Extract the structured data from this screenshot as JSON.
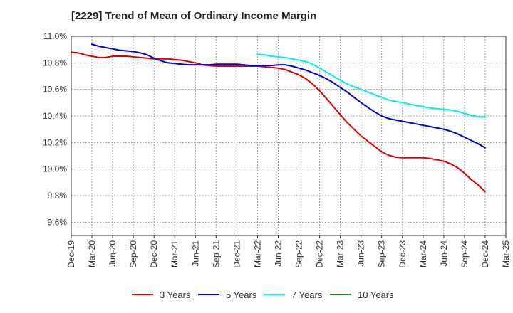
{
  "chart_data": {
    "type": "line",
    "title": "[2229]  Trend of Mean of Ordinary Income Margin",
    "xlabel": "",
    "ylabel": "",
    "x_ticks": [
      "Dec-19",
      "Mar-20",
      "Jun-20",
      "Sep-20",
      "Dec-20",
      "Mar-21",
      "Jun-21",
      "Sep-21",
      "Dec-21",
      "Mar-22",
      "Jun-22",
      "Sep-22",
      "Dec-22",
      "Mar-23",
      "Jun-23",
      "Sep-23",
      "Dec-23",
      "Mar-24",
      "Jun-24",
      "Sep-24",
      "Dec-24",
      "Mar-25"
    ],
    "y_ticks": [
      "9.6%",
      "9.8%",
      "10.0%",
      "10.2%",
      "10.4%",
      "10.6%",
      "10.8%",
      "11.0%"
    ],
    "ylim": [
      9.5,
      11.0
    ],
    "grid": true,
    "legend_position": "bottom",
    "series": [
      {
        "name": "3 Years",
        "color": "#dd0000",
        "x": [
          "Dec-19",
          "Jan-20",
          "Feb-20",
          "Mar-20",
          "Apr-20",
          "May-20",
          "Jun-20",
          "Jul-20",
          "Aug-20",
          "Sep-20",
          "Oct-20",
          "Nov-20",
          "Dec-20",
          "Jan-21",
          "Feb-21",
          "Mar-21",
          "Apr-21",
          "May-21",
          "Jun-21",
          "Jul-21",
          "Aug-21",
          "Sep-21",
          "Oct-21",
          "Nov-21",
          "Dec-21",
          "Jan-22",
          "Feb-22",
          "Mar-22",
          "Apr-22",
          "May-22",
          "Jun-22",
          "Jul-22",
          "Aug-22",
          "Sep-22",
          "Oct-22",
          "Nov-22",
          "Dec-22",
          "Jan-23",
          "Feb-23",
          "Mar-23",
          "Apr-23",
          "May-23",
          "Jun-23",
          "Jul-23",
          "Aug-23",
          "Sep-23",
          "Oct-23",
          "Nov-23",
          "Dec-23",
          "Jan-24",
          "Feb-24",
          "Mar-24",
          "Apr-24",
          "May-24",
          "Jun-24",
          "Jul-24",
          "Aug-24",
          "Sep-24",
          "Oct-24",
          "Nov-24",
          "Dec-24"
        ],
        "y": [
          10.88,
          10.875,
          10.86,
          10.85,
          10.84,
          10.84,
          10.85,
          10.85,
          10.85,
          10.845,
          10.84,
          10.835,
          10.83,
          10.83,
          10.83,
          10.825,
          10.82,
          10.81,
          10.8,
          10.785,
          10.78,
          10.775,
          10.775,
          10.775,
          10.775,
          10.775,
          10.775,
          10.775,
          10.77,
          10.765,
          10.76,
          10.75,
          10.73,
          10.71,
          10.68,
          10.64,
          10.59,
          10.53,
          10.47,
          10.41,
          10.35,
          10.3,
          10.25,
          10.21,
          10.17,
          10.13,
          10.105,
          10.09,
          10.085,
          10.085,
          10.085,
          10.085,
          10.08,
          10.07,
          10.06,
          10.04,
          10.01,
          9.97,
          9.92,
          9.88,
          9.83
        ]
      },
      {
        "name": "5 Years",
        "color": "#0000cc",
        "x": [
          "Dec-19",
          "Jan-20",
          "Feb-20",
          "Mar-20",
          "Apr-20",
          "May-20",
          "Jun-20",
          "Jul-20",
          "Aug-20",
          "Sep-20",
          "Oct-20",
          "Nov-20",
          "Dec-20",
          "Jan-21",
          "Feb-21",
          "Mar-21",
          "Apr-21",
          "May-21",
          "Jun-21",
          "Jul-21",
          "Aug-21",
          "Sep-21",
          "Oct-21",
          "Nov-21",
          "Dec-21",
          "Jan-22",
          "Feb-22",
          "Mar-22",
          "Apr-22",
          "May-22",
          "Jun-22",
          "Jul-22",
          "Aug-22",
          "Sep-22",
          "Oct-22",
          "Nov-22",
          "Dec-22",
          "Jan-23",
          "Feb-23",
          "Mar-23",
          "Apr-23",
          "May-23",
          "Jun-23",
          "Jul-23",
          "Aug-23",
          "Sep-23",
          "Oct-23",
          "Nov-23",
          "Dec-23",
          "Jan-24",
          "Feb-24",
          "Mar-24",
          "Apr-24",
          "May-24",
          "Jun-24",
          "Jul-24",
          "Aug-24",
          "Sep-24",
          "Oct-24",
          "Nov-24",
          "Dec-24"
        ],
        "y": [
          null,
          null,
          null,
          10.94,
          10.925,
          10.915,
          10.905,
          10.895,
          10.89,
          10.885,
          10.875,
          10.86,
          10.835,
          10.815,
          10.8,
          10.795,
          10.79,
          10.785,
          10.785,
          10.785,
          10.785,
          10.79,
          10.79,
          10.79,
          10.79,
          10.785,
          10.78,
          10.78,
          10.78,
          10.78,
          10.785,
          10.785,
          10.775,
          10.76,
          10.745,
          10.725,
          10.705,
          10.68,
          10.65,
          10.615,
          10.58,
          10.54,
          10.5,
          10.465,
          10.43,
          10.4,
          10.38,
          10.37,
          10.36,
          10.35,
          10.34,
          10.33,
          10.32,
          10.31,
          10.3,
          10.285,
          10.265,
          10.24,
          10.215,
          10.19,
          10.16
        ]
      },
      {
        "name": "7 Years",
        "color": "#00eeee",
        "x": [
          "Mar-22",
          "Apr-22",
          "May-22",
          "Jun-22",
          "Jul-22",
          "Aug-22",
          "Sep-22",
          "Oct-22",
          "Nov-22",
          "Dec-22",
          "Jan-23",
          "Feb-23",
          "Mar-23",
          "Apr-23",
          "May-23",
          "Jun-23",
          "Jul-23",
          "Aug-23",
          "Sep-23",
          "Oct-23",
          "Nov-23",
          "Dec-23",
          "Jan-24",
          "Feb-24",
          "Mar-24",
          "Apr-24",
          "May-24",
          "Jun-24",
          "Jul-24",
          "Aug-24",
          "Sep-24",
          "Oct-24",
          "Nov-24",
          "Dec-24"
        ],
        "y": [
          10.865,
          10.86,
          10.85,
          10.845,
          10.84,
          10.83,
          10.82,
          10.81,
          10.79,
          10.76,
          10.73,
          10.7,
          10.67,
          10.64,
          10.62,
          10.6,
          10.58,
          10.56,
          10.54,
          10.52,
          10.51,
          10.5,
          10.49,
          10.48,
          10.47,
          10.46,
          10.455,
          10.45,
          10.445,
          10.435,
          10.42,
          10.405,
          10.395,
          10.39
        ]
      },
      {
        "name": "10 Years",
        "color": "#228822",
        "x": [],
        "y": []
      }
    ]
  }
}
